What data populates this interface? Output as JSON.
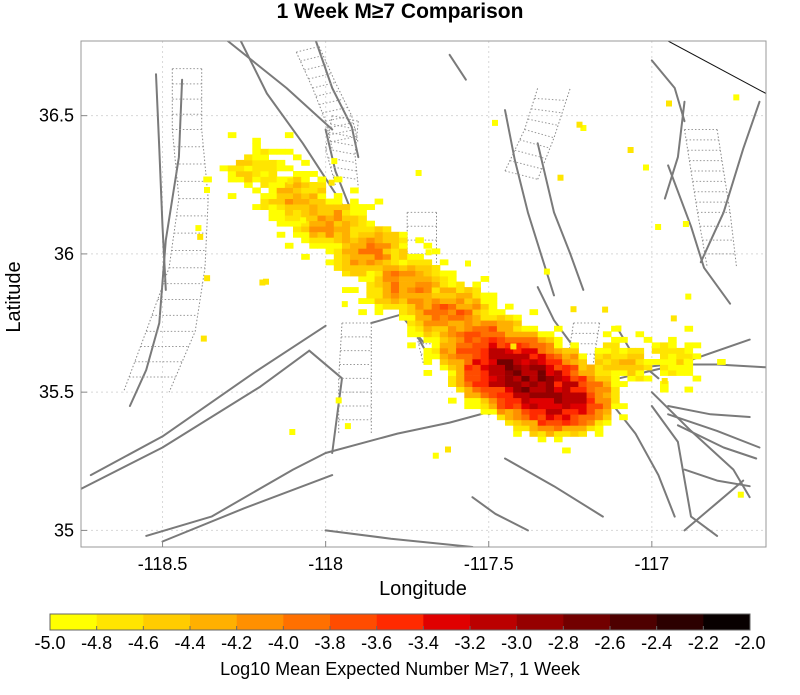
{
  "chart_data": {
    "type": "heatmap",
    "title": "1 Week M≥7 Comparison",
    "xlabel": "Longitude",
    "ylabel": "Latitude",
    "xlim": [
      -118.75,
      -116.65
    ],
    "ylim": [
      34.94,
      36.77
    ],
    "grid": true,
    "x_ticks": [
      {
        "value": -118.5,
        "label": "-118.5"
      },
      {
        "value": -118,
        "label": "-118"
      },
      {
        "value": -117.5,
        "label": "-117.5"
      },
      {
        "value": -117,
        "label": "-117"
      }
    ],
    "y_ticks": [
      {
        "value": 35,
        "label": "35"
      },
      {
        "value": 35.5,
        "label": "35.5"
      },
      {
        "value": 36,
        "label": "36"
      },
      {
        "value": 36.5,
        "label": "36.5"
      }
    ],
    "colorbar": {
      "label": "Log10 Mean Expected Number M≥7, 1 Week",
      "min": -5.0,
      "max": -2.0,
      "tick_labels": [
        "-5.0",
        "-4.8",
        "-4.6",
        "-4.4",
        "-4.2",
        "-4.0",
        "-3.8",
        "-3.6",
        "-3.4",
        "-3.2",
        "-3.0",
        "-2.8",
        "-2.6",
        "-2.4",
        "-2.2",
        "-2.0"
      ],
      "colors": [
        "#ffff00",
        "#ffe500",
        "#ffcc00",
        "#ffb000",
        "#ff9000",
        "#ff7000",
        "#ff4c00",
        "#ff2a00",
        "#e00000",
        "#bb0000",
        "#960000",
        "#720000",
        "#4e0000",
        "#2c0000",
        "#080000"
      ]
    },
    "hotspots": [
      {
        "lon": -118.22,
        "lat": 36.3,
        "value": -4.6
      },
      {
        "lon": -118.1,
        "lat": 36.19,
        "value": -4.3
      },
      {
        "lon": -118.0,
        "lat": 36.1,
        "value": -4.2
      },
      {
        "lon": -117.88,
        "lat": 36.0,
        "value": -4.1
      },
      {
        "lon": -117.76,
        "lat": 35.88,
        "value": -4.0
      },
      {
        "lon": -117.64,
        "lat": 35.78,
        "value": -3.9
      },
      {
        "lon": -117.53,
        "lat": 35.66,
        "value": -3.6
      },
      {
        "lon": -117.45,
        "lat": 35.58,
        "value": -2.9
      },
      {
        "lon": -117.38,
        "lat": 35.53,
        "value": -2.8
      },
      {
        "lon": -117.3,
        "lat": 35.47,
        "value": -3.0
      },
      {
        "lon": -117.1,
        "lat": 35.6,
        "value": -4.5
      },
      {
        "lon": -116.95,
        "lat": 35.62,
        "value": -4.7
      }
    ]
  }
}
